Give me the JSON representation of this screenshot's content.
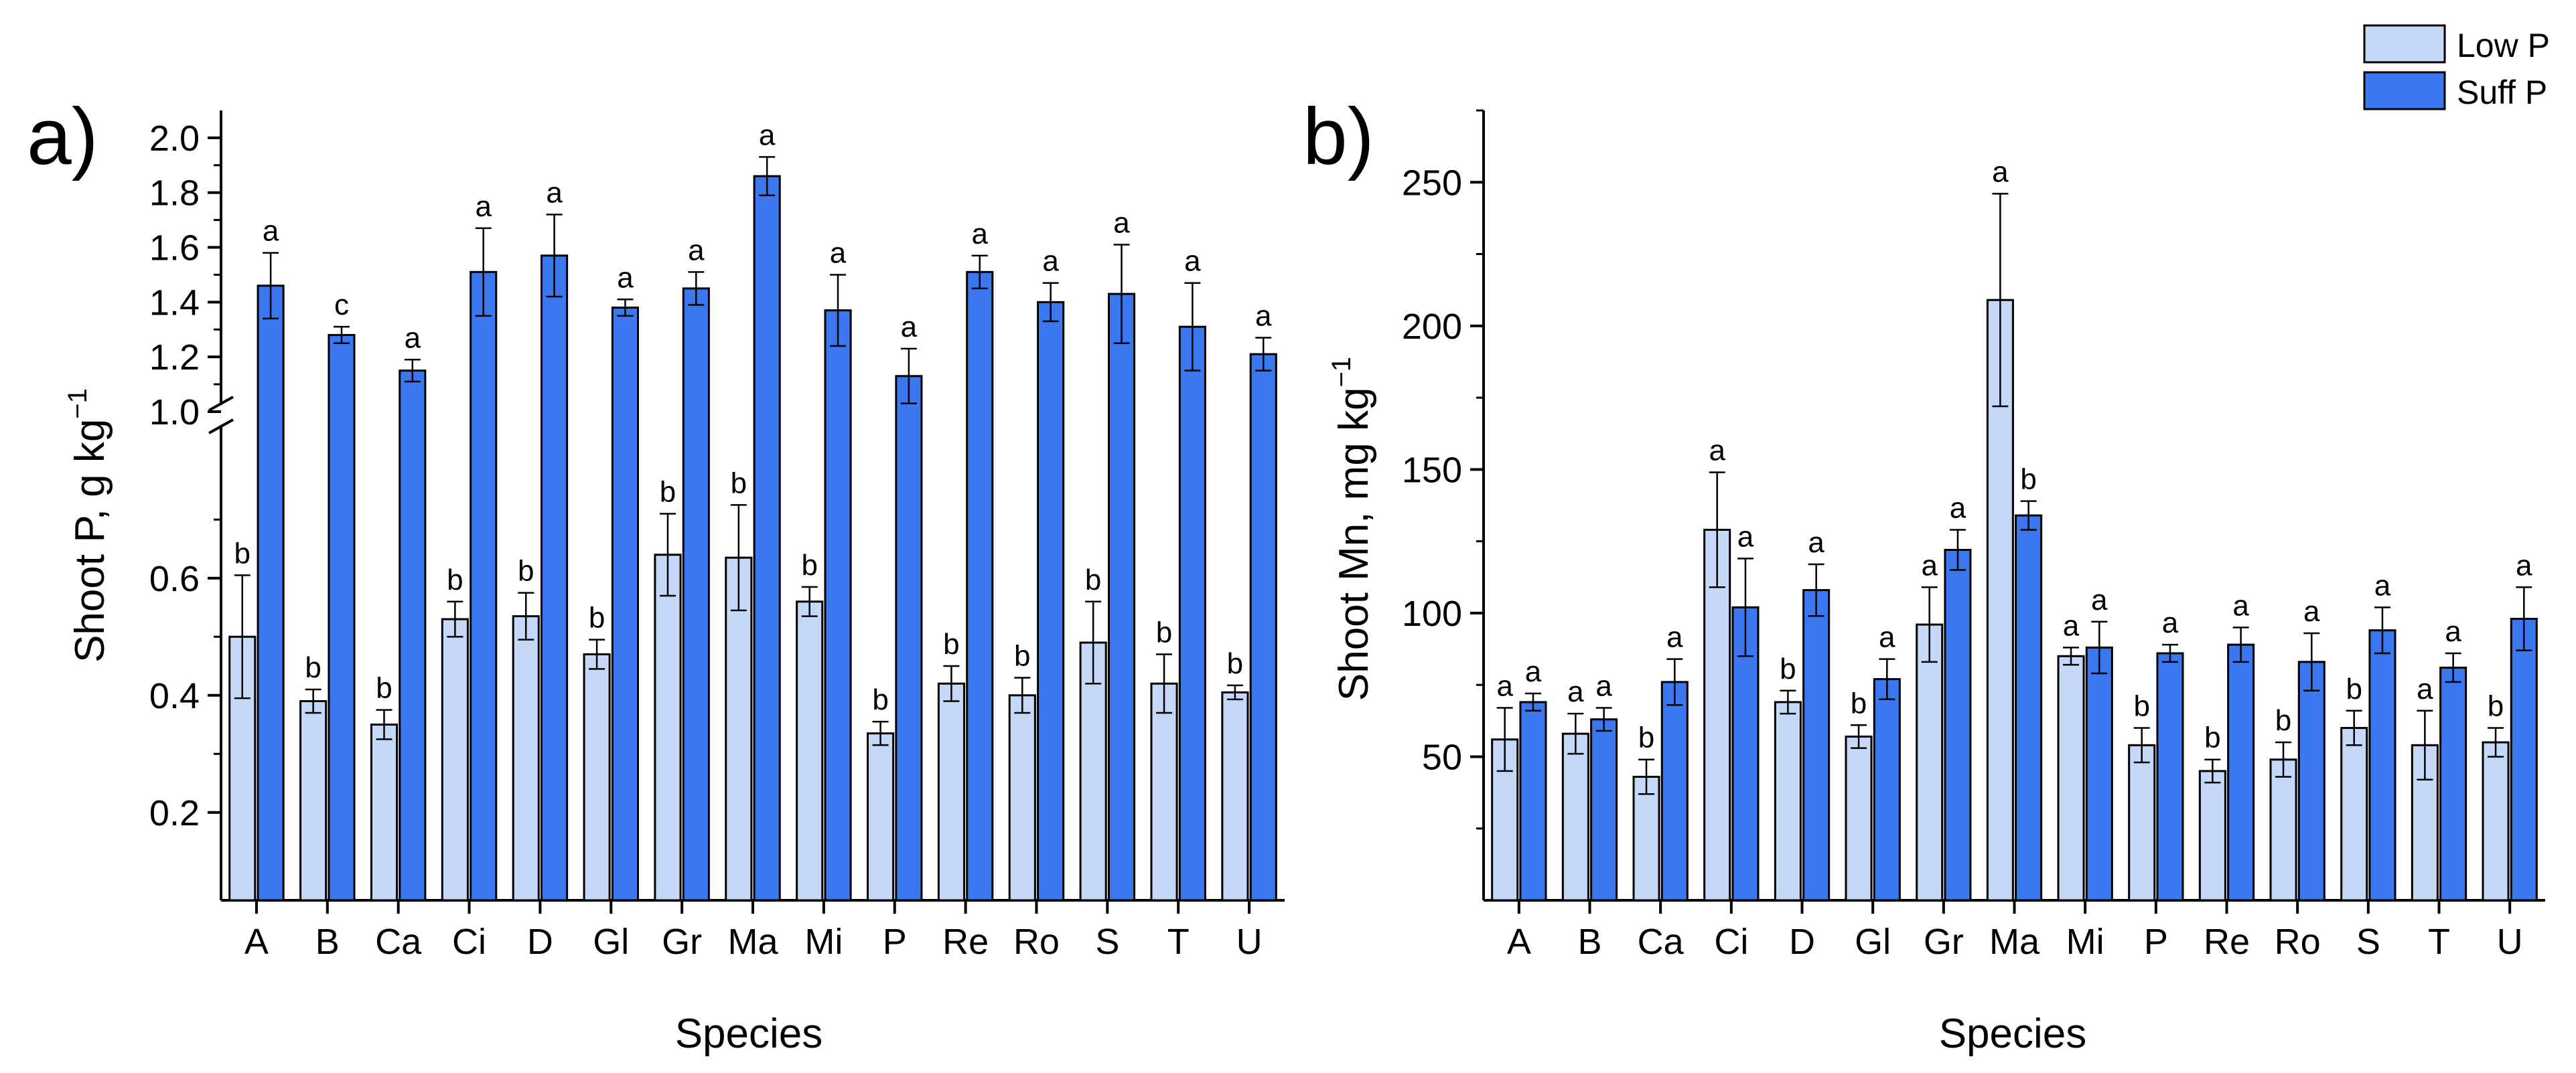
{
  "colors": {
    "low": "#c5d8f7",
    "suff": "#3b78ef",
    "stroke": "#000000"
  },
  "legend": {
    "items": [
      {
        "label": "Low P",
        "color": "#c5d8f7"
      },
      {
        "label": "Suff P",
        "color": "#3b78ef"
      }
    ]
  },
  "chart_data": [
    {
      "panel_label": "a)",
      "type": "bar",
      "title": "",
      "xlabel": "Species",
      "ylabel_main": "Shoot P, g kg",
      "ylabel_sup": "−1",
      "categories": [
        "A",
        "B",
        "Ca",
        "Ci",
        "D",
        "Gl",
        "Gr",
        "Ma",
        "Mi",
        "P",
        "Re",
        "Ro",
        "S",
        "T",
        "U"
      ],
      "axis_break": {
        "lower_range": [
          0.05,
          0.85
        ],
        "upper_range": [
          1.0,
          2.1
        ]
      },
      "yticks_lower": [
        0.2,
        0.4,
        0.6
      ],
      "yticks_upper": [
        1.0,
        1.2,
        1.4,
        1.6,
        1.8,
        2.0
      ],
      "ytick_labels_lower": [
        "0.2",
        "0.4",
        "0.6"
      ],
      "ytick_labels_upper": [
        "1.0",
        "1.2",
        "1.4",
        "1.6",
        "1.8",
        "2.0"
      ],
      "series": [
        {
          "name": "Low P",
          "values": [
            0.5,
            0.39,
            0.35,
            0.53,
            0.535,
            0.47,
            0.64,
            0.635,
            0.56,
            0.335,
            0.42,
            0.4,
            0.49,
            0.42,
            0.405
          ],
          "errors": [
            0.105,
            0.02,
            0.025,
            0.03,
            0.04,
            0.025,
            0.07,
            0.09,
            0.025,
            0.02,
            0.03,
            0.03,
            0.07,
            0.05,
            0.012
          ],
          "letters": [
            "b",
            "b",
            "b",
            "b",
            "b",
            "b",
            "b",
            "b",
            "b",
            "b",
            "b",
            "b",
            "b",
            "b",
            "b"
          ]
        },
        {
          "name": "Suff P",
          "values": [
            1.46,
            1.28,
            1.15,
            1.51,
            1.57,
            1.38,
            1.45,
            1.86,
            1.37,
            1.13,
            1.51,
            1.4,
            1.43,
            1.31,
            1.21
          ],
          "errors": [
            0.12,
            0.03,
            0.04,
            0.16,
            0.15,
            0.03,
            0.06,
            0.07,
            0.13,
            0.1,
            0.06,
            0.07,
            0.18,
            0.16,
            0.06
          ],
          "letters": [
            "a",
            "c",
            "a",
            "a",
            "a",
            "a",
            "a",
            "a",
            "a",
            "a",
            "a",
            "a",
            "a",
            "a",
            "a"
          ]
        }
      ]
    },
    {
      "panel_label": "b)",
      "type": "bar",
      "title": "",
      "xlabel": "Species",
      "ylabel_main": "Shoot Mn, mg kg",
      "ylabel_sup": "−1",
      "categories": [
        "A",
        "B",
        "Ca",
        "Ci",
        "D",
        "Gl",
        "Gr",
        "Ma",
        "Mi",
        "P",
        "Re",
        "Ro",
        "S",
        "T",
        "U"
      ],
      "ylim": [
        0,
        275
      ],
      "yticks": [
        50,
        100,
        150,
        200,
        250
      ],
      "ytick_labels": [
        "50",
        "100",
        "150",
        "200",
        "250"
      ],
      "series": [
        {
          "name": "Low P",
          "values": [
            56,
            58,
            43,
            129,
            69,
            57,
            96,
            209,
            85,
            54,
            45,
            49,
            60,
            54,
            55
          ],
          "errors": [
            11,
            7,
            6,
            20,
            4,
            4,
            13,
            37,
            3,
            6,
            4,
            6,
            6,
            12,
            5
          ],
          "letters": [
            "a",
            "a",
            "b",
            "a",
            "b",
            "b",
            "a",
            "a",
            "a",
            "b",
            "b",
            "b",
            "b",
            "a",
            "b"
          ]
        },
        {
          "name": "Suff P",
          "values": [
            69,
            63,
            76,
            102,
            108,
            77,
            122,
            134,
            88,
            86,
            89,
            83,
            94,
            81,
            98
          ],
          "errors": [
            3,
            4,
            8,
            17,
            9,
            7,
            7,
            5,
            9,
            3,
            6,
            10,
            8,
            5,
            11
          ],
          "letters": [
            "a",
            "a",
            "a",
            "a",
            "a",
            "a",
            "a",
            "b",
            "a",
            "a",
            "a",
            "a",
            "a",
            "a",
            "a"
          ]
        }
      ]
    }
  ]
}
